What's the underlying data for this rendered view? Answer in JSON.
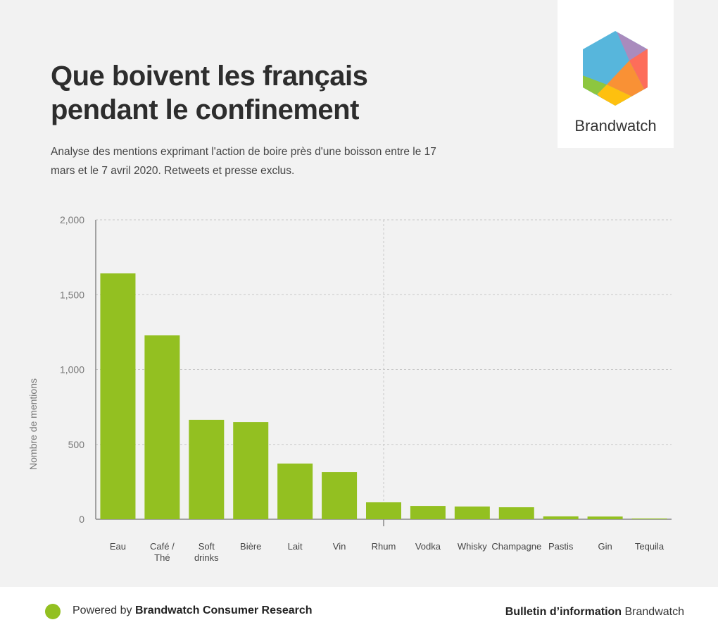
{
  "header": {
    "title": "Que boivent les français pendant le confinement",
    "subtitle": "Analyse des mentions exprimant l'action de boire près d'une boisson entre le 17 mars et le 7 avril 2020. Retweets et presse exclus."
  },
  "logo": {
    "name": "Brandwatch"
  },
  "footer": {
    "powered_prefix": "Powered by ",
    "powered_brand": "Brandwatch Consumer Research",
    "bulletin_bold": "Bulletin d’information",
    "bulletin_rest": " Brandwatch"
  },
  "chart_data": {
    "type": "bar",
    "title": "Que boivent les français pendant le confinement",
    "xlabel": "",
    "ylabel": "Nombre de mentions",
    "ylim": [
      0,
      2000
    ],
    "yticks": [
      "0",
      "500",
      "1,000",
      "1,500",
      "2,000"
    ],
    "ytick_values": [
      0,
      500,
      1000,
      1500,
      2000
    ],
    "grid": true,
    "color": "#93c021",
    "categories": [
      "Eau",
      "Café / Thé",
      "Soft drinks",
      "Bière",
      "Lait",
      "Vin",
      "Rhum",
      "Vodka",
      "Whisky",
      "Champagne",
      "Pastis",
      "Gin",
      "Tequila"
    ],
    "category_lines": [
      [
        "Eau"
      ],
      [
        "Café /",
        "Thé"
      ],
      [
        "Soft",
        "drinks"
      ],
      [
        "Bière"
      ],
      [
        "Lait"
      ],
      [
        "Vin"
      ],
      [
        "Rhum"
      ],
      [
        "Vodka"
      ],
      [
        "Whisky"
      ],
      [
        "Champagne"
      ],
      [
        "Pastis"
      ],
      [
        "Gin"
      ],
      [
        "Tequila"
      ]
    ],
    "values": [
      1642,
      1228,
      664,
      649,
      372,
      315,
      113,
      89,
      85,
      80,
      19,
      18,
      5
    ]
  }
}
